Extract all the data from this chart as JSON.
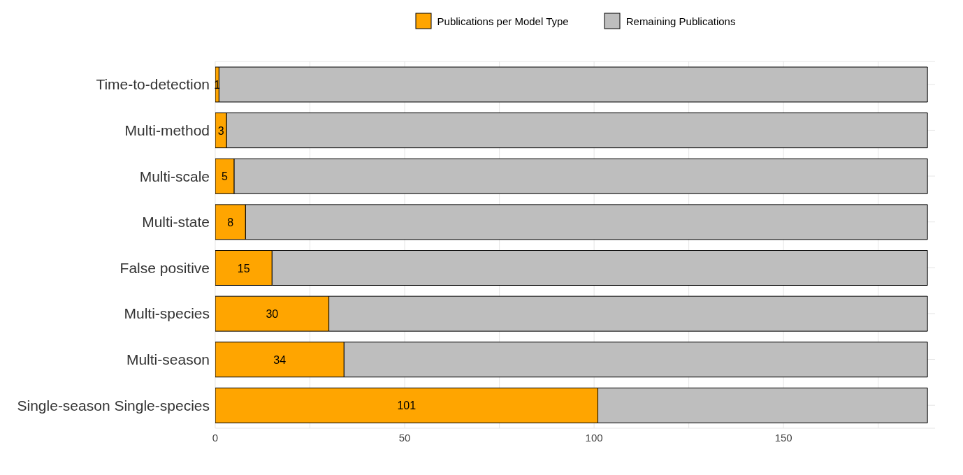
{
  "chart_data": {
    "type": "bar",
    "orientation": "horizontal",
    "stacked": true,
    "categories": [
      "Time-to-detection",
      "Multi-method",
      "Multi-scale",
      "Multi-state",
      "False positive",
      "Multi-species",
      "Multi-season",
      "Single-season Single-species"
    ],
    "series": [
      {
        "name": "Publications per Model Type",
        "color": "#ffa500",
        "values": [
          1,
          3,
          5,
          8,
          15,
          30,
          34,
          101
        ],
        "value_labels": [
          "1",
          "3",
          "5",
          "8",
          "15",
          "30",
          "34",
          "101"
        ]
      },
      {
        "name": "Remaining Publications",
        "color": "#bebebe",
        "values": [
          187,
          185,
          183,
          180,
          173,
          158,
          154,
          87
        ]
      }
    ],
    "xlim": [
      0,
      190
    ],
    "xticks": [
      0,
      {
        "value": 25,
        "label": null
      },
      50,
      {
        "value": 75,
        "label": null
      },
      100,
      {
        "value": 125,
        "label": null
      },
      150,
      {
        "value": 175,
        "label": null
      }
    ],
    "grid": true,
    "legend": "top"
  }
}
